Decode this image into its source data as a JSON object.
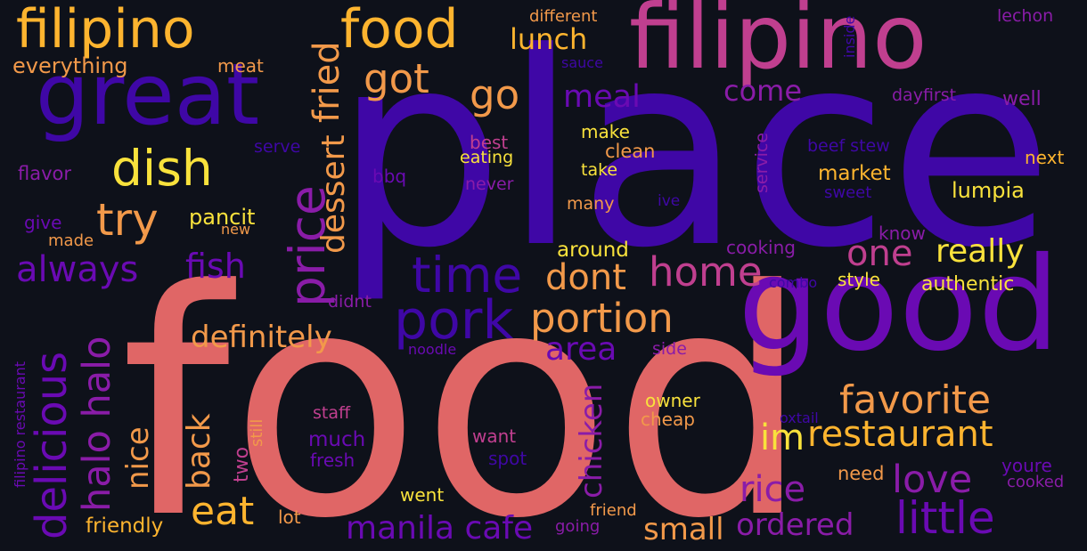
{
  "background": "#0e111a",
  "palette": {
    "coral": "#e06666",
    "orange": "#f2994a",
    "gold": "#fdb42f",
    "yellow": "#f9e23c",
    "magenta": "#c03f8f",
    "purple": "#8a1ca8",
    "violet": "#6a0ab3",
    "indigo": "#3f07a6",
    "dim": "#5c1a9a"
  },
  "words": [
    {
      "text": "place",
      "color": "#3f07a6"
    },
    {
      "text": "food",
      "color": "#e06666"
    },
    {
      "text": "good",
      "color": "#6a0ab3"
    },
    {
      "text": "filipino",
      "color": "#c03f8f"
    },
    {
      "text": "great",
      "color": "#3f07a6"
    },
    {
      "text": "filipino",
      "color": "#fdb42f"
    },
    {
      "text": "food",
      "color": "#fdb42f"
    },
    {
      "text": "dish",
      "color": "#f9e23c"
    },
    {
      "text": "try",
      "color": "#f2994a"
    },
    {
      "text": "got",
      "color": "#f2994a"
    },
    {
      "text": "go",
      "color": "#f2994a"
    },
    {
      "text": "fried",
      "color": "#f2994a"
    },
    {
      "text": "lunch",
      "color": "#fdb42f"
    },
    {
      "text": "meal",
      "color": "#6a0ab3"
    },
    {
      "text": "come",
      "color": "#8a1ca8"
    },
    {
      "text": "everything",
      "color": "#f2994a"
    },
    {
      "text": "meat",
      "color": "#f2994a"
    },
    {
      "text": "price",
      "color": "#8a1ca8"
    },
    {
      "text": "dessert",
      "color": "#f2994a"
    },
    {
      "text": "always",
      "color": "#6a0ab3"
    },
    {
      "text": "fish",
      "color": "#6a0ab3"
    },
    {
      "text": "pancit",
      "color": "#f9e23c"
    },
    {
      "text": "time",
      "color": "#3f07a6"
    },
    {
      "text": "home",
      "color": "#c03f8f"
    },
    {
      "text": "one",
      "color": "#c03f8f"
    },
    {
      "text": "really",
      "color": "#f9e23c"
    },
    {
      "text": "dont",
      "color": "#f2994a"
    },
    {
      "text": "pork",
      "color": "#3f07a6"
    },
    {
      "text": "portion",
      "color": "#f2994a"
    },
    {
      "text": "definitely",
      "color": "#f2994a"
    },
    {
      "text": "area",
      "color": "#6a0ab3"
    },
    {
      "text": "delicious",
      "color": "#6a0ab3"
    },
    {
      "text": "halo halo",
      "color": "#8a1ca8"
    },
    {
      "text": "back",
      "color": "#f2994a"
    },
    {
      "text": "chicken",
      "color": "#8a1ca8"
    },
    {
      "text": "favorite",
      "color": "#f2994a"
    },
    {
      "text": "im",
      "color": "#f9e23c"
    },
    {
      "text": "restaurant",
      "color": "#fdb42f"
    },
    {
      "text": "nice",
      "color": "#f2994a"
    },
    {
      "text": "eat",
      "color": "#fdb42f"
    },
    {
      "text": "rice",
      "color": "#8a1ca8"
    },
    {
      "text": "love",
      "color": "#8a1ca8"
    },
    {
      "text": "little",
      "color": "#6a0ab3"
    },
    {
      "text": "manila cafe",
      "color": "#6a0ab3"
    },
    {
      "text": "small",
      "color": "#f2994a"
    },
    {
      "text": "ordered",
      "color": "#8a1ca8"
    },
    {
      "text": "friendly",
      "color": "#fdb42f"
    },
    {
      "text": "different",
      "color": "#f2994a"
    },
    {
      "text": "lechon",
      "color": "#8a1ca8"
    },
    {
      "text": "inside",
      "color": "#3f07a6"
    },
    {
      "text": "sauce",
      "color": "#3f07a6"
    },
    {
      "text": "dayfirst",
      "color": "#8a1ca8"
    },
    {
      "text": "well",
      "color": "#8a1ca8"
    },
    {
      "text": "serve",
      "color": "#3f07a6"
    },
    {
      "text": "best",
      "color": "#c03f8f"
    },
    {
      "text": "make",
      "color": "#f9e23c"
    },
    {
      "text": "clean",
      "color": "#f2994a"
    },
    {
      "text": "service",
      "color": "#8a1ca8"
    },
    {
      "text": "beef stew",
      "color": "#3f07a6"
    },
    {
      "text": "next",
      "color": "#fdb42f"
    },
    {
      "text": "eating",
      "color": "#f9e23c"
    },
    {
      "text": "take",
      "color": "#f9e23c"
    },
    {
      "text": "market",
      "color": "#fdb42f"
    },
    {
      "text": "sweet",
      "color": "#3f07a6"
    },
    {
      "text": "lumpia",
      "color": "#f9e23c"
    },
    {
      "text": "flavor",
      "color": "#8a1ca8"
    },
    {
      "text": "bbq",
      "color": "#6a0ab3"
    },
    {
      "text": "never",
      "color": "#8a1ca8"
    },
    {
      "text": "many",
      "color": "#f2994a"
    },
    {
      "text": "ive",
      "color": "#3f07a6"
    },
    {
      "text": "give",
      "color": "#6a0ab3"
    },
    {
      "text": "made",
      "color": "#f2994a"
    },
    {
      "text": "new",
      "color": "#f2994a"
    },
    {
      "text": "around",
      "color": "#f9e23c"
    },
    {
      "text": "cooking",
      "color": "#8a1ca8"
    },
    {
      "text": "know",
      "color": "#8a1ca8"
    },
    {
      "text": "combo",
      "color": "#3f07a6"
    },
    {
      "text": "style",
      "color": "#f9e23c"
    },
    {
      "text": "authentic",
      "color": "#f9e23c"
    },
    {
      "text": "didnt",
      "color": "#8a1ca8"
    },
    {
      "text": "noodle",
      "color": "#6a0ab3"
    },
    {
      "text": "side",
      "color": "#8a1ca8"
    },
    {
      "text": "filipino restaurant",
      "color": "#6a0ab3"
    },
    {
      "text": "still",
      "color": "#f2994a"
    },
    {
      "text": "staff",
      "color": "#c03f8f"
    },
    {
      "text": "much",
      "color": "#6a0ab3"
    },
    {
      "text": "fresh",
      "color": "#6a0ab3"
    },
    {
      "text": "two",
      "color": "#c03f8f"
    },
    {
      "text": "want",
      "color": "#c03f8f"
    },
    {
      "text": "spot",
      "color": "#3f07a6"
    },
    {
      "text": "owner",
      "color": "#f9e23c"
    },
    {
      "text": "cheap",
      "color": "#f2994a"
    },
    {
      "text": "oxtail",
      "color": "#3f07a6"
    },
    {
      "text": "need",
      "color": "#f2994a"
    },
    {
      "text": "youre",
      "color": "#6a0ab3"
    },
    {
      "text": "cooked",
      "color": "#8a1ca8"
    },
    {
      "text": "went",
      "color": "#f9e23c"
    },
    {
      "text": "friend",
      "color": "#f2994a"
    },
    {
      "text": "lot",
      "color": "#f2994a"
    },
    {
      "text": "going",
      "color": "#8a1ca8"
    }
  ]
}
